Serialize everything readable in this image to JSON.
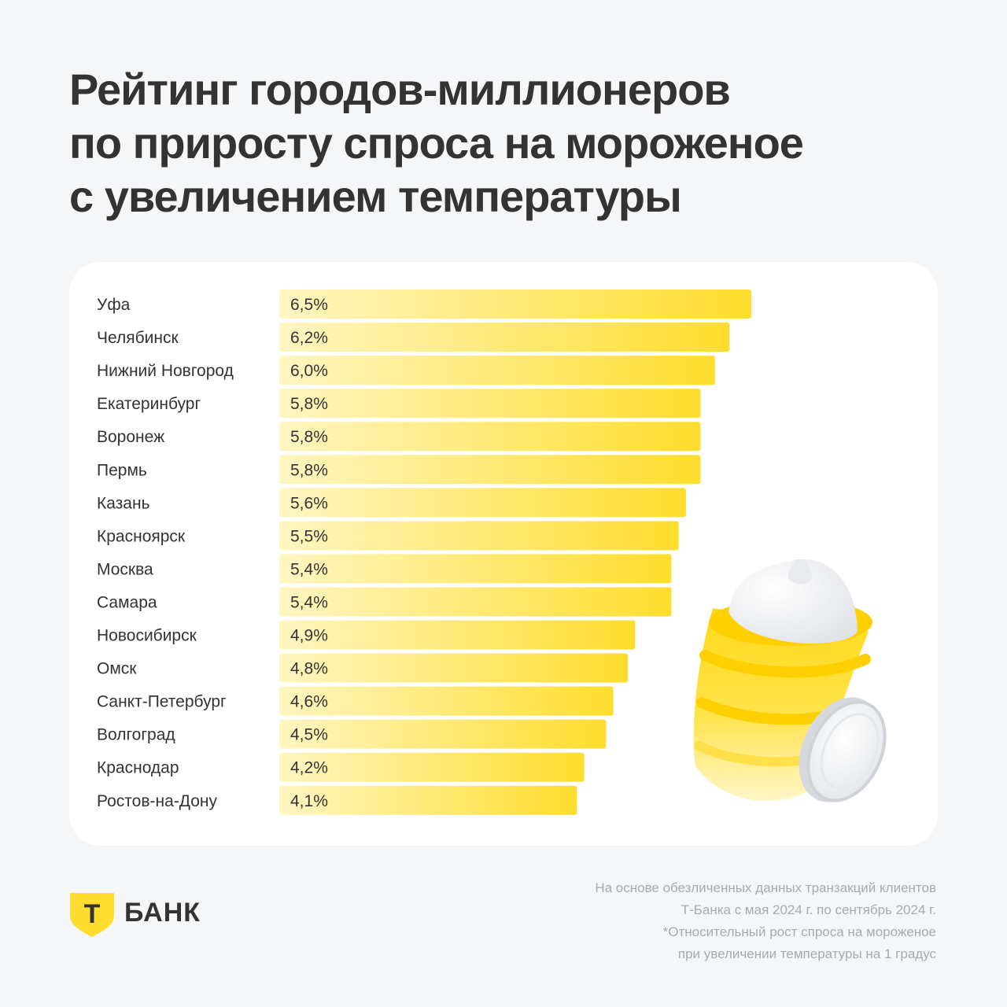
{
  "title_lines": [
    "Рейтинг городов-миллионеров",
    "по приросту спроса на мороженое",
    "с увеличением температуры"
  ],
  "chart_data": {
    "type": "bar",
    "orientation": "horizontal",
    "categories": [
      "Уфа",
      "Челябинск",
      "Нижний Новгород",
      "Екатеринбург",
      "Воронеж",
      "Пермь",
      "Казань",
      "Красноярск",
      "Москва",
      "Самара",
      "Новосибирск",
      "Омск",
      "Санкт-Петербург",
      "Волгоград",
      "Краснодар",
      "Ростов-на-Дону"
    ],
    "values": [
      6.5,
      6.2,
      6.0,
      5.8,
      5.8,
      5.8,
      5.6,
      5.5,
      5.4,
      5.4,
      4.9,
      4.8,
      4.6,
      4.5,
      4.2,
      4.1
    ],
    "labels": [
      "6,5%",
      "6,2%",
      "6,0%",
      "5,8%",
      "5,8%",
      "5,8%",
      "5,6%",
      "5,5%",
      "5,4%",
      "5,4%",
      "4,9%",
      "4,8%",
      "4,6%",
      "4,5%",
      "4,2%",
      "4,1%"
    ],
    "xlim": [
      0,
      6.5
    ],
    "grid": false,
    "bar_color_start": "#fff6c2",
    "bar_color_end": "#ffdd2d"
  },
  "footnote_lines": [
    "На основе обезличенных данных транзакций клиентов",
    "Т-Банка с мая 2024 г. по сентябрь 2024 г.",
    "*Относительный рост спроса на мороженое",
    "при увеличении температуры на 1 градус"
  ],
  "logo": {
    "letter": "Т",
    "word": "БАНК",
    "color": "#ffdd2d"
  },
  "illustration": "ice-cream-cone-with-coin"
}
